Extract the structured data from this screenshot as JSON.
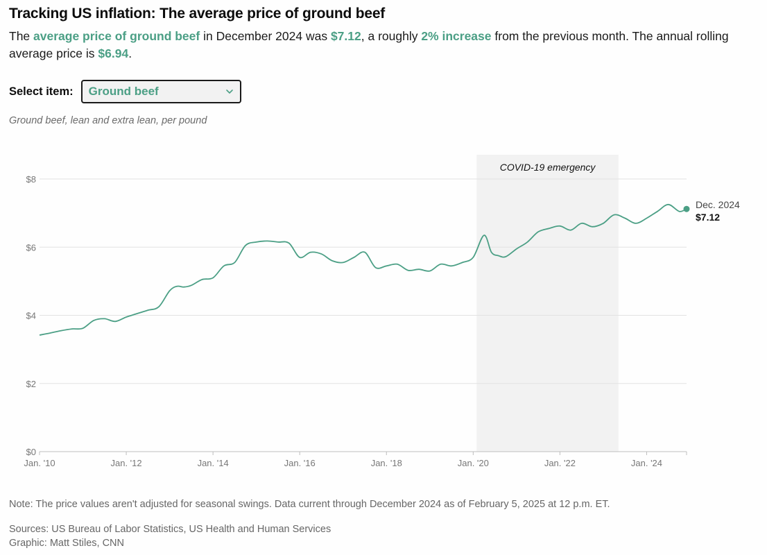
{
  "header": {
    "title": "Tracking US inflation: The average price of ground beef"
  },
  "summary": {
    "t1": "The ",
    "h1": "average price of ground beef",
    "t2": " in December 2024 was ",
    "h2": "$7.12",
    "t3": ", a roughly ",
    "h3": "2% increase",
    "t4": " from the previous month. The annual rolling average price is ",
    "h4": "$6.94",
    "t5": "."
  },
  "selector": {
    "label": "Select item:",
    "value": "Ground beef"
  },
  "chart_subtitle": "Ground beef, lean and extra lean, per pound",
  "colors": {
    "accent": "#4b9f85",
    "shade": "#f2f2f2",
    "grid": "#e2e2e2"
  },
  "chart_data": {
    "type": "line",
    "title": "Ground beef, lean and extra lean, per pound",
    "xlabel": "",
    "ylabel": "",
    "xlim": [
      2010.0,
      2024.92
    ],
    "ylim": [
      0,
      8
    ],
    "y_ticks": [
      0,
      2,
      4,
      6,
      8
    ],
    "y_tick_labels": [
      "$0",
      "$2",
      "$4",
      "$6",
      "$8"
    ],
    "x_ticks": [
      2010,
      2012,
      2014,
      2016,
      2018,
      2020,
      2022,
      2024
    ],
    "x_tick_labels": [
      "Jan. '10",
      "Jan. '12",
      "Jan. '14",
      "Jan. '16",
      "Jan. '18",
      "Jan. '20",
      "Jan. '22",
      "Jan. '24"
    ],
    "shaded_region": {
      "start": 2020.08,
      "end": 2023.35,
      "label": "COVID-19 emergency"
    },
    "end_label": {
      "date": "Dec. 2024",
      "value_label": "$7.12"
    },
    "series": [
      {
        "name": "Average price",
        "x": [
          2010.0,
          2010.25,
          2010.5,
          2010.75,
          2011.0,
          2011.25,
          2011.5,
          2011.75,
          2012.0,
          2012.25,
          2012.5,
          2012.75,
          2013.0,
          2013.17,
          2013.33,
          2013.5,
          2013.75,
          2014.0,
          2014.25,
          2014.5,
          2014.75,
          2015.0,
          2015.25,
          2015.5,
          2015.75,
          2016.0,
          2016.25,
          2016.5,
          2016.75,
          2017.0,
          2017.25,
          2017.5,
          2017.75,
          2018.0,
          2018.25,
          2018.5,
          2018.75,
          2019.0,
          2019.25,
          2019.5,
          2019.75,
          2020.0,
          2020.25,
          2020.42,
          2020.58,
          2020.75,
          2021.0,
          2021.25,
          2021.5,
          2021.75,
          2022.0,
          2022.25,
          2022.5,
          2022.75,
          2023.0,
          2023.25,
          2023.5,
          2023.75,
          2024.0,
          2024.25,
          2024.5,
          2024.75,
          2024.92
        ],
        "values": [
          3.42,
          3.48,
          3.55,
          3.6,
          3.62,
          3.85,
          3.9,
          3.82,
          3.95,
          4.05,
          4.15,
          4.25,
          4.72,
          4.85,
          4.83,
          4.88,
          5.05,
          5.1,
          5.45,
          5.55,
          6.05,
          6.15,
          6.18,
          6.15,
          6.12,
          5.7,
          5.85,
          5.8,
          5.6,
          5.55,
          5.7,
          5.85,
          5.4,
          5.45,
          5.5,
          5.32,
          5.35,
          5.3,
          5.5,
          5.45,
          5.55,
          5.7,
          6.35,
          5.85,
          5.75,
          5.72,
          5.95,
          6.15,
          6.45,
          6.55,
          6.62,
          6.5,
          6.7,
          6.6,
          6.7,
          6.95,
          6.85,
          6.7,
          6.85,
          7.05,
          7.25,
          7.05,
          7.12
        ]
      }
    ]
  },
  "footer": {
    "note": "Note: The price values aren't adjusted for seasonal swings. Data current through December 2024 as of February 5, 2025 at 12 p.m. ET.",
    "sources": "Sources: US Bureau of Labor Statistics, US Health and Human Services",
    "graphic": "Graphic: Matt Stiles, CNN"
  }
}
